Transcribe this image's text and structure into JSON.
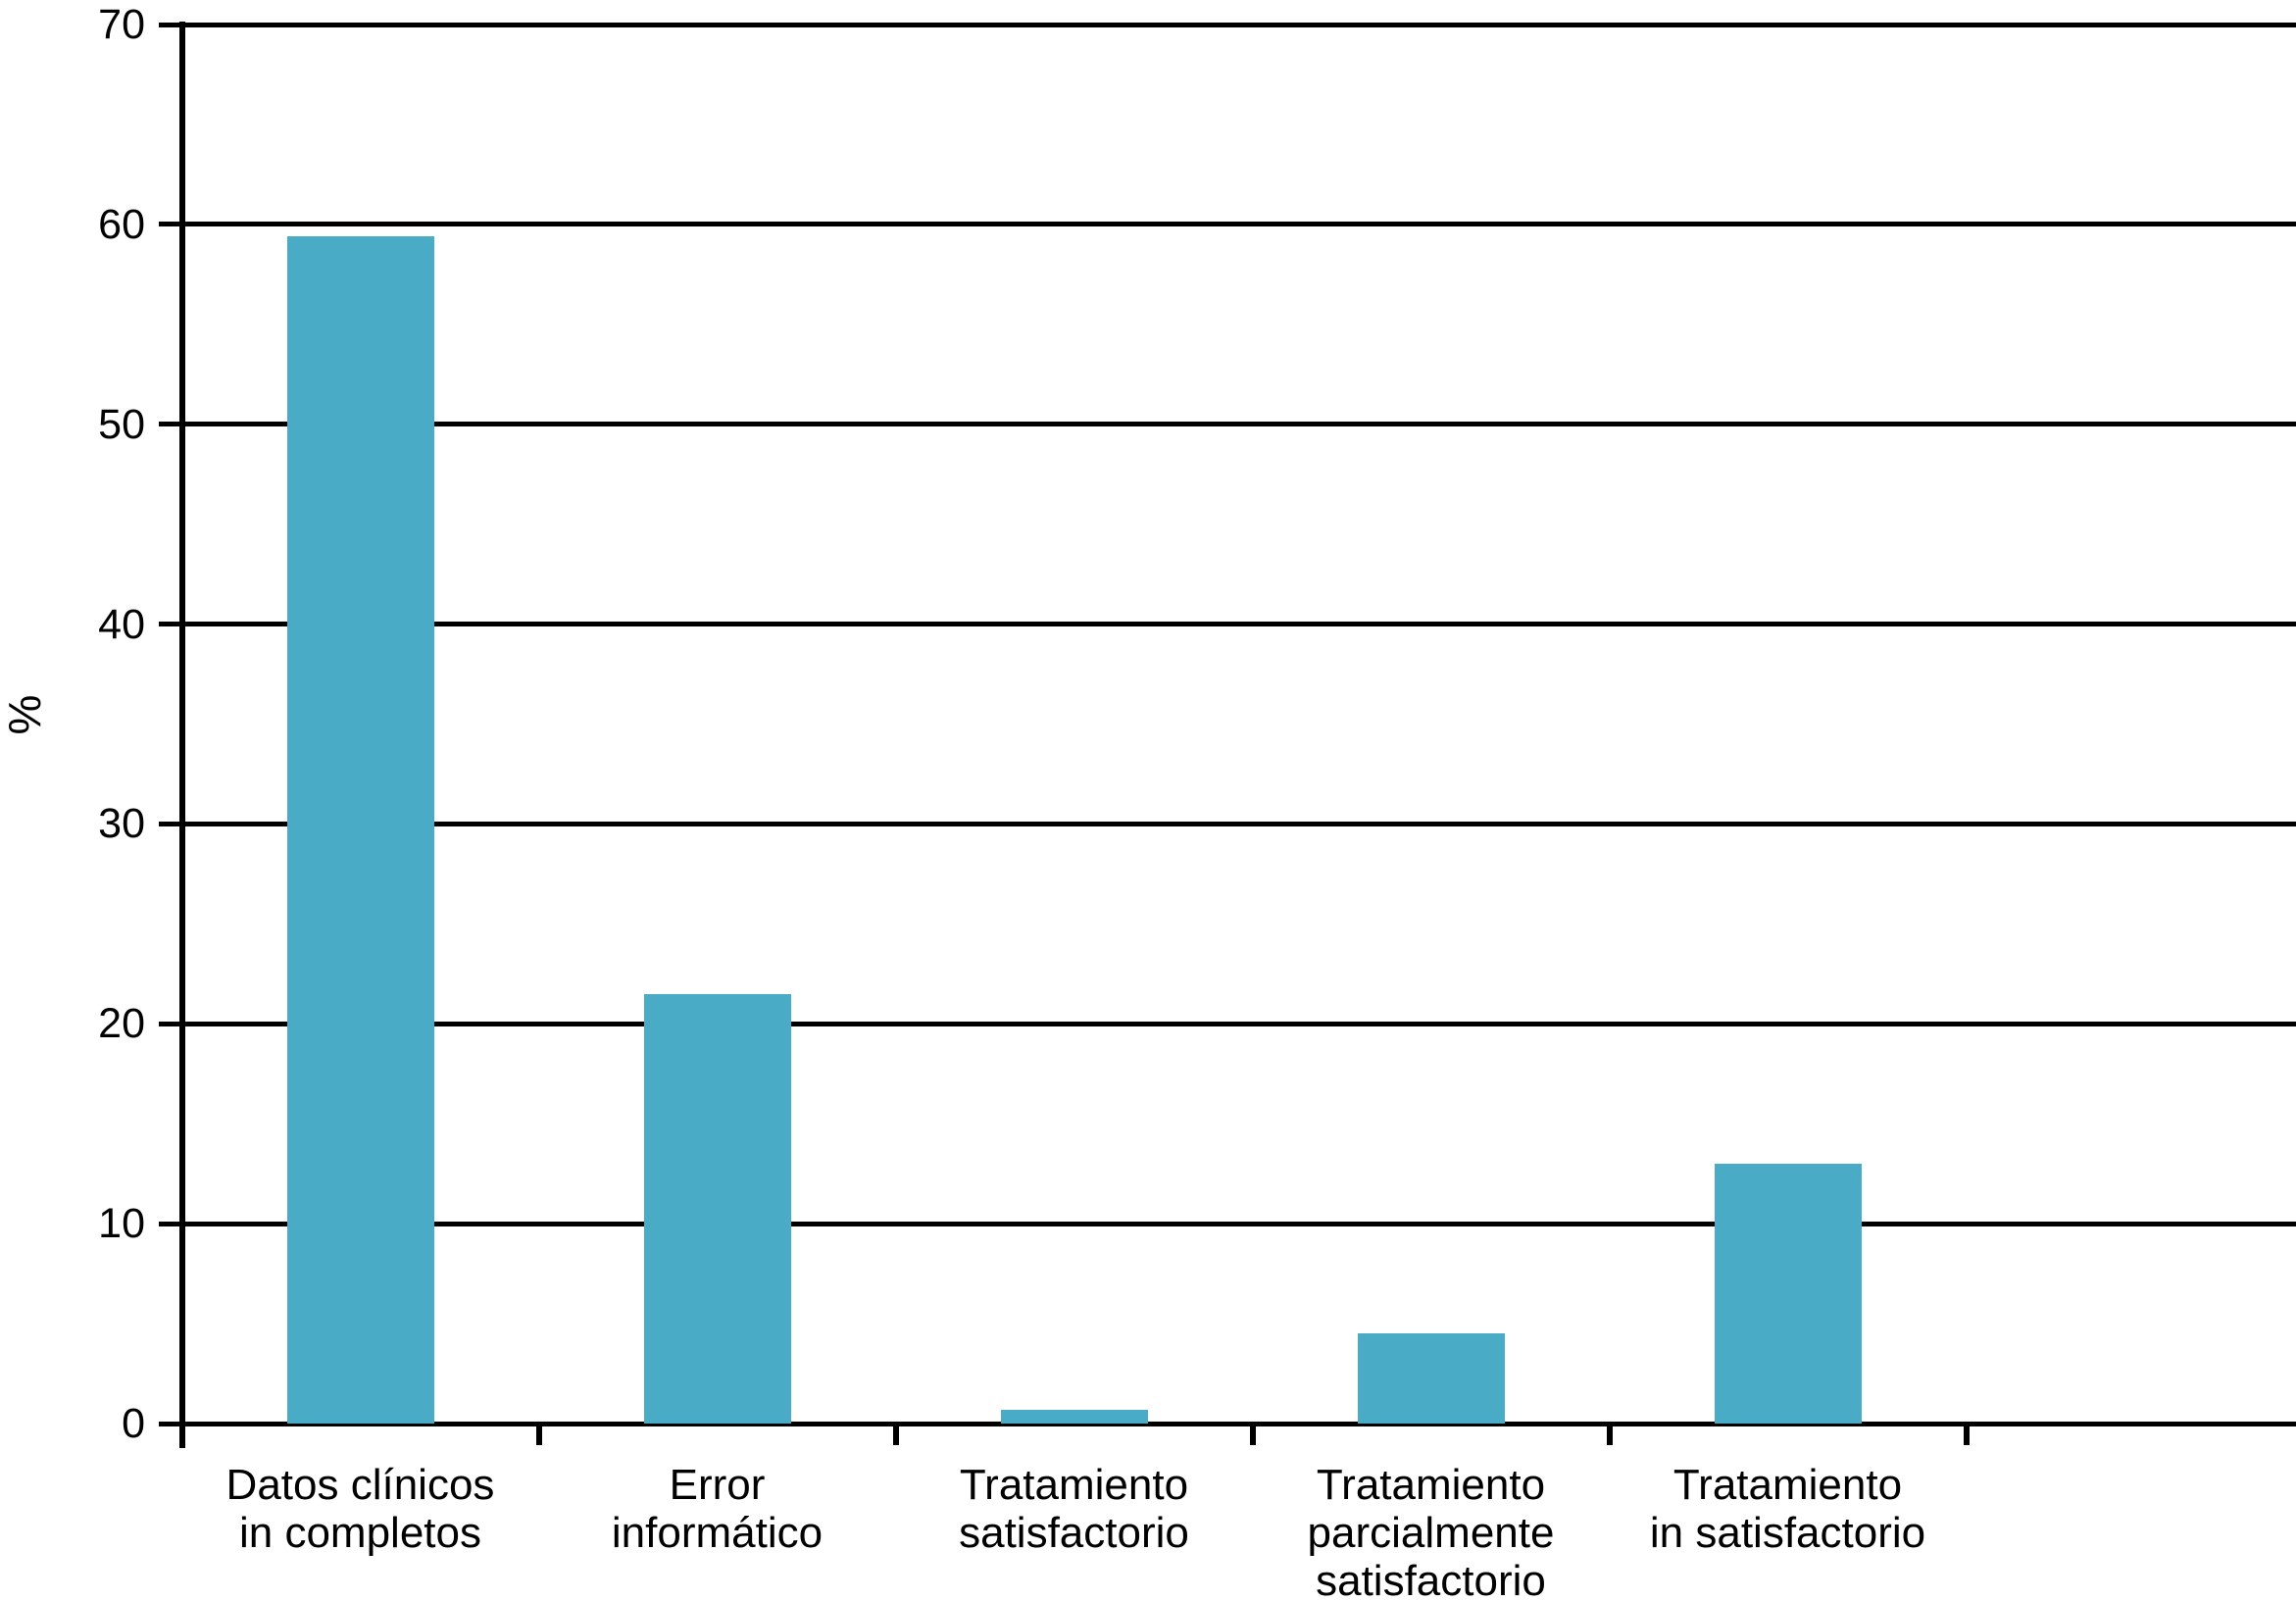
{
  "chart_data": {
    "type": "bar",
    "title": "",
    "ylabel": "%",
    "xlabel": "",
    "ylim": [
      0,
      70
    ],
    "yticks": [
      0,
      10,
      20,
      30,
      40,
      50,
      60,
      70
    ],
    "grid": true,
    "legend_position": "none",
    "categories": [
      "Datos clínicos\nin completos",
      "Error\ninformático",
      "Tratamiento\nsatisfactorio",
      "Tratamiento\nparcialmente\nsatisfactorio",
      "Tratamiento\nin satisfactorio"
    ],
    "values": [
      59.4,
      21.5,
      0.7,
      4.5,
      13
    ],
    "bar_color": "#49ABC6",
    "axis_color": "#000000",
    "background_color": "#FFFFFF"
  }
}
